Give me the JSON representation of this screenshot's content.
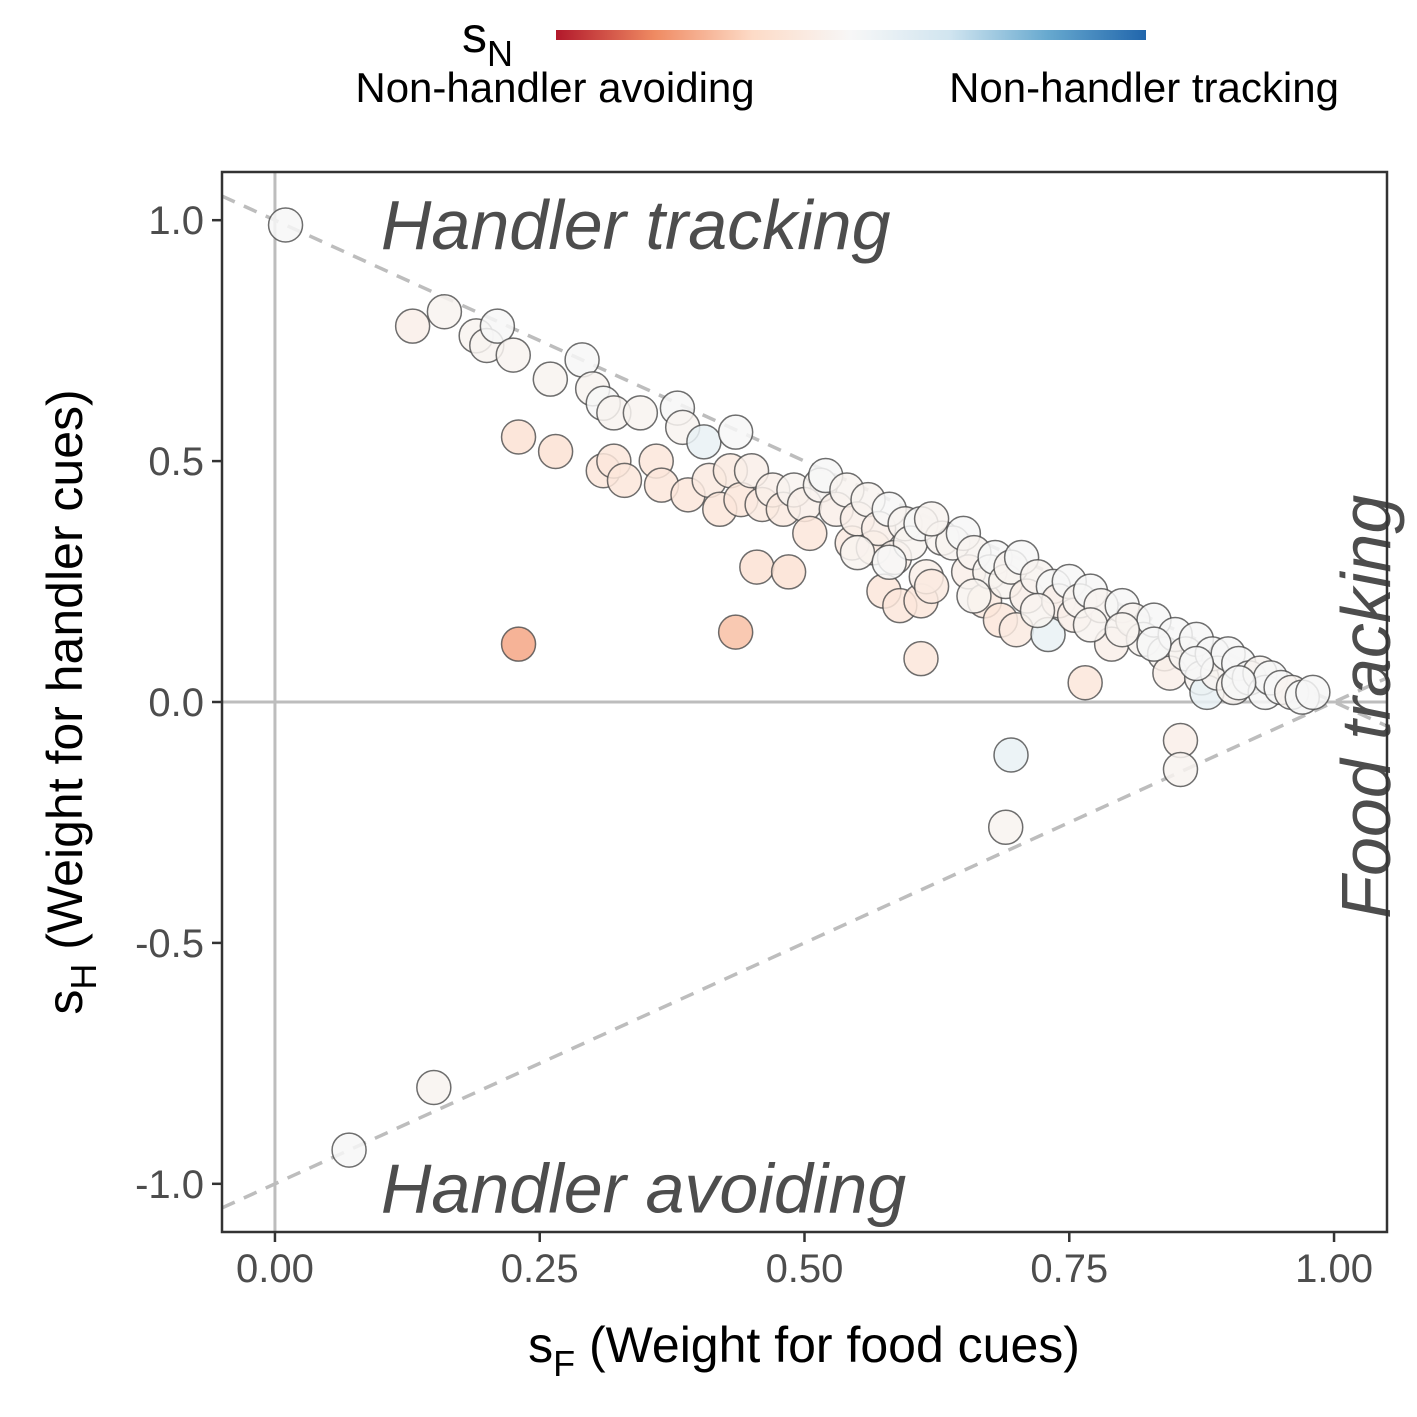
{
  "chart_data": {
    "type": "scatter",
    "xlabel": {
      "main": "s",
      "sub": "F",
      "rest": " (Weight for food cues)"
    },
    "ylabel": {
      "main": "s",
      "sub": "H",
      "rest": " (Weight for handler cues)"
    },
    "xlim": [
      -0.05,
      1.05
    ],
    "ylim": [
      -1.1,
      1.1
    ],
    "x_ticks": [
      0.0,
      0.25,
      0.5,
      0.75,
      1.0
    ],
    "x_tick_labels": [
      "0.00",
      "0.25",
      "0.50",
      "0.75",
      "1.00"
    ],
    "y_ticks": [
      -1.0,
      -0.5,
      0.0,
      0.5,
      1.0
    ],
    "y_tick_labels": [
      "-1.0",
      "-0.5",
      "0.0",
      "0.5",
      "1.0"
    ],
    "grid": false,
    "annotations": [
      {
        "text": "Handler tracking",
        "x": 0.1,
        "y": 0.99,
        "rotate": false
      },
      {
        "text": "Handler avoiding",
        "x": 0.1,
        "y": -1.01,
        "rotate": false
      },
      {
        "text": "Food tracking",
        "x": 1.03,
        "y": -0.45,
        "rotate": true
      }
    ],
    "reference_lines": [
      {
        "x1": -0.05,
        "y1": 1.05,
        "x2": 1.05,
        "y2": -0.05
      },
      {
        "x1": -0.05,
        "y1": -1.05,
        "x2": 1.05,
        "y2": 0.05
      }
    ],
    "legend": {
      "title": {
        "main": "s",
        "sub": "N"
      },
      "low_label": "Non-handler avoiding",
      "high_label": "Non-handler tracking",
      "placement": "top",
      "colors": [
        "#b2182b",
        "#ef8a62",
        "#fddbc7",
        "#f7f7f7",
        "#d1e5f0",
        "#67a9cf",
        "#2166ac"
      ],
      "range": [
        -1,
        1
      ]
    },
    "points": [
      {
        "x": 0.01,
        "y": 0.99,
        "c": 0.0
      },
      {
        "x": 0.13,
        "y": 0.78,
        "c": -0.1
      },
      {
        "x": 0.16,
        "y": 0.81,
        "c": -0.05
      },
      {
        "x": 0.19,
        "y": 0.76,
        "c": -0.05
      },
      {
        "x": 0.2,
        "y": 0.74,
        "c": -0.05
      },
      {
        "x": 0.21,
        "y": 0.78,
        "c": 0.0
      },
      {
        "x": 0.225,
        "y": 0.72,
        "c": -0.05
      },
      {
        "x": 0.23,
        "y": 0.55,
        "c": -0.25
      },
      {
        "x": 0.23,
        "y": 0.12,
        "c": -0.55
      },
      {
        "x": 0.26,
        "y": 0.67,
        "c": -0.05
      },
      {
        "x": 0.265,
        "y": 0.52,
        "c": -0.25
      },
      {
        "x": 0.29,
        "y": 0.71,
        "c": 0.0
      },
      {
        "x": 0.3,
        "y": 0.65,
        "c": -0.05
      },
      {
        "x": 0.31,
        "y": 0.62,
        "c": 0.0
      },
      {
        "x": 0.32,
        "y": 0.6,
        "c": -0.05
      },
      {
        "x": 0.31,
        "y": 0.48,
        "c": -0.2
      },
      {
        "x": 0.32,
        "y": 0.5,
        "c": -0.2
      },
      {
        "x": 0.33,
        "y": 0.46,
        "c": -0.2
      },
      {
        "x": 0.345,
        "y": 0.6,
        "c": -0.05
      },
      {
        "x": 0.36,
        "y": 0.5,
        "c": -0.2
      },
      {
        "x": 0.365,
        "y": 0.45,
        "c": -0.2
      },
      {
        "x": 0.38,
        "y": 0.61,
        "c": 0.0
      },
      {
        "x": 0.385,
        "y": 0.57,
        "c": -0.05
      },
      {
        "x": 0.39,
        "y": 0.43,
        "c": -0.2
      },
      {
        "x": 0.405,
        "y": 0.54,
        "c": 0.12
      },
      {
        "x": 0.41,
        "y": 0.46,
        "c": -0.15
      },
      {
        "x": 0.42,
        "y": 0.4,
        "c": -0.2
      },
      {
        "x": 0.43,
        "y": 0.48,
        "c": -0.15
      },
      {
        "x": 0.435,
        "y": 0.56,
        "c": 0.0
      },
      {
        "x": 0.435,
        "y": 0.145,
        "c": -0.45
      },
      {
        "x": 0.44,
        "y": 0.42,
        "c": -0.2
      },
      {
        "x": 0.45,
        "y": 0.48,
        "c": -0.1
      },
      {
        "x": 0.455,
        "y": 0.28,
        "c": -0.25
      },
      {
        "x": 0.46,
        "y": 0.41,
        "c": -0.15
      },
      {
        "x": 0.47,
        "y": 0.44,
        "c": -0.1
      },
      {
        "x": 0.48,
        "y": 0.4,
        "c": -0.15
      },
      {
        "x": 0.485,
        "y": 0.27,
        "c": -0.25
      },
      {
        "x": 0.49,
        "y": 0.44,
        "c": -0.05
      },
      {
        "x": 0.5,
        "y": 0.41,
        "c": -0.1
      },
      {
        "x": 0.505,
        "y": 0.35,
        "c": -0.2
      },
      {
        "x": 0.515,
        "y": 0.45,
        "c": -0.05
      },
      {
        "x": 0.52,
        "y": 0.47,
        "c": 0.0
      },
      {
        "x": 0.53,
        "y": 0.4,
        "c": -0.1
      },
      {
        "x": 0.54,
        "y": 0.44,
        "c": -0.05
      },
      {
        "x": 0.545,
        "y": 0.33,
        "c": -0.15
      },
      {
        "x": 0.55,
        "y": 0.38,
        "c": -0.1
      },
      {
        "x": 0.56,
        "y": 0.42,
        "c": -0.05
      },
      {
        "x": 0.565,
        "y": 0.32,
        "c": -0.15
      },
      {
        "x": 0.57,
        "y": 0.36,
        "c": -0.1
      },
      {
        "x": 0.575,
        "y": 0.23,
        "c": -0.2
      },
      {
        "x": 0.58,
        "y": 0.4,
        "c": 0.0
      },
      {
        "x": 0.585,
        "y": 0.3,
        "c": -0.1
      },
      {
        "x": 0.59,
        "y": 0.2,
        "c": -0.2
      },
      {
        "x": 0.595,
        "y": 0.37,
        "c": -0.05
      },
      {
        "x": 0.6,
        "y": 0.33,
        "c": -0.05
      },
      {
        "x": 0.61,
        "y": 0.21,
        "c": -0.2
      },
      {
        "x": 0.61,
        "y": 0.37,
        "c": 0.0
      },
      {
        "x": 0.615,
        "y": 0.26,
        "c": -0.1
      },
      {
        "x": 0.62,
        "y": 0.24,
        "c": -0.15
      },
      {
        "x": 0.63,
        "y": 0.34,
        "c": -0.05
      },
      {
        "x": 0.64,
        "y": 0.33,
        "c": -0.05
      },
      {
        "x": 0.65,
        "y": 0.35,
        "c": 0.0
      },
      {
        "x": 0.655,
        "y": 0.27,
        "c": -0.1
      },
      {
        "x": 0.66,
        "y": 0.31,
        "c": -0.05
      },
      {
        "x": 0.67,
        "y": 0.21,
        "c": -0.15
      },
      {
        "x": 0.675,
        "y": 0.27,
        "c": -0.05
      },
      {
        "x": 0.68,
        "y": 0.3,
        "c": 0.0
      },
      {
        "x": 0.685,
        "y": 0.17,
        "c": -0.2
      },
      {
        "x": 0.69,
        "y": 0.25,
        "c": -0.05
      },
      {
        "x": 0.695,
        "y": 0.28,
        "c": -0.05
      },
      {
        "x": 0.7,
        "y": 0.15,
        "c": -0.15
      },
      {
        "x": 0.705,
        "y": 0.3,
        "c": 0.0
      },
      {
        "x": 0.71,
        "y": 0.22,
        "c": -0.1
      },
      {
        "x": 0.72,
        "y": 0.26,
        "c": -0.05
      },
      {
        "x": 0.73,
        "y": 0.14,
        "c": 0.12
      },
      {
        "x": 0.735,
        "y": 0.24,
        "c": 0.0
      },
      {
        "x": 0.74,
        "y": 0.21,
        "c": -0.1
      },
      {
        "x": 0.75,
        "y": 0.25,
        "c": 0.0
      },
      {
        "x": 0.755,
        "y": 0.18,
        "c": -0.1
      },
      {
        "x": 0.76,
        "y": 0.21,
        "c": -0.05
      },
      {
        "x": 0.765,
        "y": 0.04,
        "c": -0.2
      },
      {
        "x": 0.77,
        "y": 0.23,
        "c": 0.0
      },
      {
        "x": 0.78,
        "y": 0.2,
        "c": -0.05
      },
      {
        "x": 0.79,
        "y": 0.12,
        "c": -0.1
      },
      {
        "x": 0.8,
        "y": 0.2,
        "c": 0.0
      },
      {
        "x": 0.81,
        "y": 0.17,
        "c": -0.05
      },
      {
        "x": 0.82,
        "y": 0.13,
        "c": -0.05
      },
      {
        "x": 0.83,
        "y": 0.17,
        "c": 0.0
      },
      {
        "x": 0.84,
        "y": 0.1,
        "c": -0.05
      },
      {
        "x": 0.845,
        "y": 0.06,
        "c": -0.1
      },
      {
        "x": 0.85,
        "y": 0.14,
        "c": 0.0
      },
      {
        "x": 0.855,
        "y": -0.08,
        "c": -0.1
      },
      {
        "x": 0.855,
        "y": -0.14,
        "c": -0.05
      },
      {
        "x": 0.86,
        "y": 0.1,
        "c": -0.05
      },
      {
        "x": 0.87,
        "y": 0.13,
        "c": 0.0
      },
      {
        "x": 0.875,
        "y": 0.05,
        "c": -0.05
      },
      {
        "x": 0.88,
        "y": 0.02,
        "c": 0.12
      },
      {
        "x": 0.885,
        "y": 0.1,
        "c": 0.0
      },
      {
        "x": 0.89,
        "y": 0.06,
        "c": -0.05
      },
      {
        "x": 0.9,
        "y": 0.1,
        "c": 0.0
      },
      {
        "x": 0.905,
        "y": 0.03,
        "c": -0.05
      },
      {
        "x": 0.91,
        "y": 0.08,
        "c": 0.0
      },
      {
        "x": 0.92,
        "y": 0.05,
        "c": 0.0
      },
      {
        "x": 0.93,
        "y": 0.06,
        "c": -0.05
      },
      {
        "x": 0.935,
        "y": 0.02,
        "c": 0.0
      },
      {
        "x": 0.94,
        "y": 0.05,
        "c": 0.0
      },
      {
        "x": 0.95,
        "y": 0.03,
        "c": 0.0
      },
      {
        "x": 0.96,
        "y": 0.02,
        "c": -0.05
      },
      {
        "x": 0.97,
        "y": 0.01,
        "c": 0.0
      },
      {
        "x": 0.98,
        "y": 0.02,
        "c": 0.0
      },
      {
        "x": 0.695,
        "y": -0.11,
        "c": 0.12
      },
      {
        "x": 0.69,
        "y": -0.26,
        "c": -0.05
      },
      {
        "x": 0.15,
        "y": -0.8,
        "c": -0.05
      },
      {
        "x": 0.07,
        "y": -0.93,
        "c": 0.0
      },
      {
        "x": 0.61,
        "y": 0.09,
        "c": -0.2
      },
      {
        "x": 0.55,
        "y": 0.31,
        "c": -0.05
      },
      {
        "x": 0.58,
        "y": 0.29,
        "c": 0.0
      },
      {
        "x": 0.62,
        "y": 0.38,
        "c": -0.05
      },
      {
        "x": 0.66,
        "y": 0.22,
        "c": -0.05
      },
      {
        "x": 0.72,
        "y": 0.19,
        "c": -0.05
      },
      {
        "x": 0.77,
        "y": 0.16,
        "c": -0.05
      },
      {
        "x": 0.8,
        "y": 0.15,
        "c": -0.05
      },
      {
        "x": 0.83,
        "y": 0.12,
        "c": 0.0
      },
      {
        "x": 0.87,
        "y": 0.08,
        "c": 0.0
      },
      {
        "x": 0.91,
        "y": 0.04,
        "c": 0.0
      }
    ]
  }
}
